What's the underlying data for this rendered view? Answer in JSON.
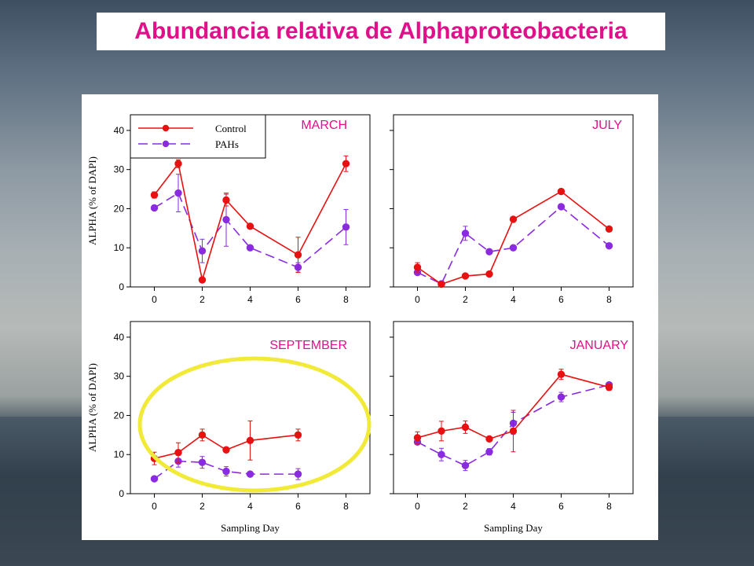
{
  "title": "Abundancia relativa de Alphaproteobacteria",
  "colors": {
    "control": "#e81010",
    "pahs": "#8a2be2",
    "highlight": "#f2ea38",
    "title": "#e0108a",
    "month": "#e0108a"
  },
  "labels": {
    "ylabel": "ALPHA (% of DAPI)",
    "xlabel": "Sampling Day"
  },
  "legend": {
    "control": "Control",
    "pahs": "PAHs"
  },
  "chart_data": [
    {
      "type": "line",
      "title": "MARCH",
      "xticks": [
        0,
        2,
        4,
        6,
        8
      ],
      "yticks": [
        0,
        10,
        20,
        30,
        40
      ],
      "xlim": [
        -1,
        9
      ],
      "ylim": [
        0,
        44
      ],
      "series": [
        {
          "name": "Control",
          "x": [
            0,
            1,
            2,
            3,
            4,
            6,
            8
          ],
          "y": [
            23.5,
            31.5,
            1.8,
            22.2,
            15.5,
            8.2,
            31.5
          ],
          "err": [
            0.8,
            1,
            0.5,
            1.5,
            0.6,
            4.5,
            2
          ]
        },
        {
          "name": "PAHs",
          "x": [
            0,
            1,
            2,
            3,
            4,
            6,
            8
          ],
          "y": [
            20.2,
            24,
            9.2,
            17.2,
            10,
            5,
            15.3
          ],
          "err": [
            0.5,
            4.8,
            3,
            6.8,
            0.5,
            1.2,
            4.5
          ]
        }
      ]
    },
    {
      "type": "line",
      "title": "JULY",
      "xticks": [
        0,
        2,
        4,
        6,
        8
      ],
      "yticks": [
        0,
        10,
        20,
        30,
        40
      ],
      "xlim": [
        -1,
        9
      ],
      "ylim": [
        0,
        44
      ],
      "series": [
        {
          "name": "Control",
          "x": [
            0,
            1,
            2,
            3,
            4,
            6,
            8
          ],
          "y": [
            5,
            0.7,
            2.8,
            3.3,
            17.3,
            24.4,
            14.8
          ],
          "err": [
            1.2,
            0.3,
            0.6,
            0.5,
            0.4,
            0.5,
            0.4
          ]
        },
        {
          "name": "PAHs",
          "x": [
            0,
            1,
            2,
            3,
            4,
            6,
            8
          ],
          "y": [
            3.7,
            0.8,
            13.7,
            9,
            10,
            20.5,
            10.5
          ],
          "err": [
            0.6,
            0.3,
            1.8,
            0.5,
            0.4,
            0.5,
            0.4
          ]
        }
      ]
    },
    {
      "type": "line",
      "title": "SEPTEMBER",
      "xticks": [
        0,
        2,
        4,
        6,
        8
      ],
      "yticks": [
        0,
        10,
        20,
        30,
        40
      ],
      "xlim": [
        -1,
        9
      ],
      "ylim": [
        0,
        44
      ],
      "series": [
        {
          "name": "Control",
          "x": [
            0,
            1,
            2,
            3,
            4,
            6
          ],
          "y": [
            9,
            10.5,
            15,
            11.2,
            13.6,
            15
          ],
          "err": [
            1.6,
            2.5,
            1.5,
            0.5,
            5,
            1.5
          ]
        },
        {
          "name": "PAHs",
          "x": [
            0,
            1,
            2,
            3,
            4,
            6
          ],
          "y": [
            3.8,
            8.3,
            8,
            5.7,
            5,
            5
          ],
          "err": [
            0.5,
            1.5,
            1.5,
            1.2,
            0.6,
            1.4
          ]
        }
      ]
    },
    {
      "type": "line",
      "title": "JANUARY",
      "xticks": [
        0,
        2,
        4,
        6,
        8
      ],
      "yticks": [
        0,
        10,
        20,
        30,
        40
      ],
      "xlim": [
        -1,
        9
      ],
      "ylim": [
        0,
        44
      ],
      "series": [
        {
          "name": "Control",
          "x": [
            0,
            1,
            2,
            3,
            4,
            6,
            8
          ],
          "y": [
            14.3,
            16,
            17,
            14,
            16,
            30.5,
            27.2
          ],
          "err": [
            1.5,
            2.5,
            1.6,
            0.5,
            5.3,
            1.3,
            0.8
          ]
        },
        {
          "name": "PAHs",
          "x": [
            0,
            1,
            2,
            3,
            4,
            6,
            8
          ],
          "y": [
            13.2,
            10,
            7.2,
            10.7,
            18,
            24.7,
            27.8
          ],
          "err": [
            0.6,
            1.6,
            1.3,
            0.8,
            2.8,
            1.2,
            0.6
          ]
        }
      ]
    }
  ]
}
